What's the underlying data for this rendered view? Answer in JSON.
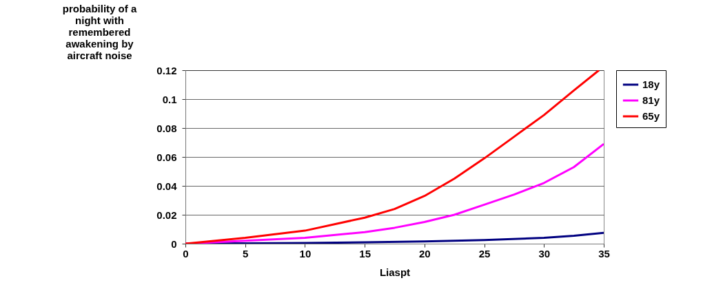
{
  "chart_data": {
    "type": "line",
    "xlabel": "Liaspt",
    "ylabel": "probability of a night with remembered awakening by aircraft noise",
    "xlim": [
      0,
      35
    ],
    "xticks": [
      0,
      5,
      10,
      15,
      20,
      25,
      30,
      35
    ],
    "ylim": [
      0,
      0.12
    ],
    "yticks": [
      0,
      0.02,
      0.04,
      0.06,
      0.08,
      0.1,
      0.12
    ],
    "grid": "y",
    "legend": "right",
    "line_style": "solid",
    "marker": "none",
    "series": [
      {
        "name": "18y",
        "color": "#000080",
        "x": [
          0,
          5,
          10,
          15,
          20,
          25,
          30,
          32.5,
          35
        ],
        "values": [
          0,
          0.0002,
          0.0005,
          0.0009,
          0.0015,
          0.0025,
          0.004,
          0.0055,
          0.0075
        ]
      },
      {
        "name": "81y",
        "color": "#ff00ff",
        "x": [
          0,
          5,
          10,
          15,
          17.5,
          20,
          22.5,
          25,
          27.5,
          30,
          32.5,
          35
        ],
        "values": [
          0,
          0.002,
          0.004,
          0.008,
          0.011,
          0.015,
          0.02,
          0.027,
          0.034,
          0.042,
          0.053,
          0.069
        ]
      },
      {
        "name": "65y",
        "color": "#ff0000",
        "x": [
          0,
          5,
          10,
          15,
          17.5,
          20,
          22.5,
          25,
          27.5,
          30,
          32.5,
          34.6
        ],
        "values": [
          0,
          0.004,
          0.009,
          0.018,
          0.024,
          0.033,
          0.045,
          0.059,
          0.074,
          0.089,
          0.106,
          0.12
        ]
      }
    ]
  }
}
